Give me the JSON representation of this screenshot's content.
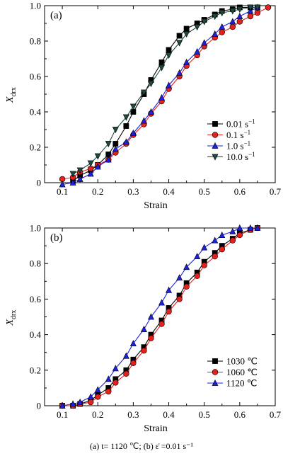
{
  "caption": "(a)  t= 1120 ℃; (b)  ε̇ =0.01 s⁻¹",
  "chart_data": [
    {
      "type": "line",
      "panel_label": "(a)",
      "xlabel": "Strain",
      "ylabel": "X_drx",
      "ylabel_main": "X",
      "ylabel_sub": "drx",
      "xlim": [
        0.05,
        0.7
      ],
      "ylim": [
        0,
        1.0
      ],
      "xticks": [
        "0.1",
        "0.2",
        "0.3",
        "0.4",
        "0.5",
        "0.6",
        "0.7"
      ],
      "yticks": [
        "0",
        "0.2",
        "0.4",
        "0.6",
        "0.8",
        "1.0"
      ],
      "xtick_values": [
        0.1,
        0.2,
        0.3,
        0.4,
        0.5,
        0.6,
        0.7
      ],
      "ytick_values": [
        0,
        0.2,
        0.4,
        0.6,
        0.8,
        1.0
      ],
      "legend_position": "center-right",
      "series": [
        {
          "name": "0.01 s⁻¹",
          "color": "#000000",
          "marker": "square",
          "x": [
            0.13,
            0.15,
            0.18,
            0.2,
            0.23,
            0.25,
            0.28,
            0.3,
            0.33,
            0.35,
            0.38,
            0.4,
            0.43,
            0.45,
            0.48,
            0.5,
            0.53,
            0.55,
            0.58,
            0.6,
            0.63,
            0.65
          ],
          "y": [
            0.01,
            0.04,
            0.07,
            0.1,
            0.16,
            0.22,
            0.32,
            0.4,
            0.5,
            0.58,
            0.68,
            0.75,
            0.83,
            0.87,
            0.9,
            0.92,
            0.95,
            0.97,
            0.98,
            0.99,
            0.99,
            0.99
          ]
        },
        {
          "name": "0.1 s⁻¹",
          "color": "#e8201b",
          "marker": "circle",
          "x": [
            0.1,
            0.13,
            0.15,
            0.18,
            0.2,
            0.23,
            0.25,
            0.28,
            0.3,
            0.33,
            0.35,
            0.38,
            0.4,
            0.43,
            0.45,
            0.48,
            0.5,
            0.53,
            0.55,
            0.58,
            0.6,
            0.63,
            0.65,
            0.68
          ],
          "y": [
            0.02,
            0.03,
            0.06,
            0.08,
            0.1,
            0.13,
            0.17,
            0.22,
            0.27,
            0.33,
            0.39,
            0.46,
            0.53,
            0.6,
            0.66,
            0.72,
            0.77,
            0.82,
            0.85,
            0.88,
            0.91,
            0.94,
            0.96,
            0.99
          ]
        },
        {
          "name": "1.0 s⁻¹",
          "color": "#1e22e0",
          "marker": "triangle-up",
          "x": [
            0.1,
            0.13,
            0.15,
            0.18,
            0.2,
            0.23,
            0.25,
            0.28,
            0.3,
            0.33,
            0.35,
            0.38,
            0.4,
            0.43,
            0.45,
            0.48,
            0.5,
            0.53,
            0.55,
            0.58,
            0.6,
            0.63,
            0.65
          ],
          "y": [
            -0.01,
            0.0,
            0.02,
            0.05,
            0.09,
            0.13,
            0.19,
            0.23,
            0.28,
            0.35,
            0.4,
            0.48,
            0.55,
            0.62,
            0.68,
            0.74,
            0.79,
            0.84,
            0.88,
            0.91,
            0.94,
            0.97,
            0.99
          ]
        },
        {
          "name": "10.0 s⁻¹",
          "color": "#1d4a43",
          "marker": "triangle-down",
          "x": [
            0.13,
            0.15,
            0.18,
            0.2,
            0.23,
            0.25,
            0.28,
            0.3,
            0.33,
            0.35,
            0.38,
            0.4,
            0.43,
            0.45,
            0.48,
            0.5,
            0.53,
            0.55,
            0.58,
            0.6,
            0.63,
            0.65
          ],
          "y": [
            0.05,
            0.07,
            0.11,
            0.15,
            0.22,
            0.3,
            0.37,
            0.43,
            0.51,
            0.56,
            0.65,
            0.72,
            0.79,
            0.84,
            0.88,
            0.91,
            0.94,
            0.96,
            0.97,
            0.98,
            0.99,
            0.99
          ]
        }
      ]
    },
    {
      "type": "line",
      "panel_label": "(b)",
      "xlabel": "Strain",
      "ylabel": "X_drx",
      "ylabel_main": "X",
      "ylabel_sub": "drx",
      "xlim": [
        0.05,
        0.7
      ],
      "ylim": [
        0,
        1.0
      ],
      "xticks": [
        "0.1",
        "0.2",
        "0.3",
        "0.4",
        "0.5",
        "0.6",
        "0.7"
      ],
      "yticks": [
        "0",
        "0.2",
        "0.4",
        "0.6",
        "0.8",
        "1.0"
      ],
      "xtick_values": [
        0.1,
        0.2,
        0.3,
        0.4,
        0.5,
        0.6,
        0.7
      ],
      "ytick_values": [
        0,
        0.2,
        0.4,
        0.6,
        0.8,
        1.0
      ],
      "legend_position": "lower-right",
      "series": [
        {
          "name": "1030 ℃",
          "color": "#000000",
          "marker": "square",
          "x": [
            0.1,
            0.13,
            0.15,
            0.18,
            0.2,
            0.23,
            0.25,
            0.28,
            0.3,
            0.33,
            0.35,
            0.38,
            0.4,
            0.43,
            0.45,
            0.48,
            0.5,
            0.53,
            0.55,
            0.58,
            0.6,
            0.63,
            0.65
          ],
          "y": [
            0.0,
            0.0,
            0.01,
            0.03,
            0.06,
            0.1,
            0.15,
            0.2,
            0.26,
            0.33,
            0.4,
            0.48,
            0.55,
            0.62,
            0.69,
            0.75,
            0.81,
            0.86,
            0.9,
            0.94,
            0.97,
            0.99,
            1.0
          ]
        },
        {
          "name": "1060 ℃",
          "color": "#e8201b",
          "marker": "circle",
          "x": [
            0.1,
            0.13,
            0.15,
            0.18,
            0.2,
            0.23,
            0.25,
            0.28,
            0.3,
            0.33,
            0.35,
            0.38,
            0.4,
            0.43,
            0.45,
            0.48,
            0.5,
            0.53,
            0.55,
            0.58,
            0.6,
            0.63,
            0.65
          ],
          "y": [
            0.0,
            0.0,
            0.01,
            0.02,
            0.05,
            0.08,
            0.13,
            0.18,
            0.24,
            0.31,
            0.38,
            0.46,
            0.53,
            0.6,
            0.67,
            0.73,
            0.79,
            0.84,
            0.88,
            0.93,
            0.96,
            0.99,
            1.0
          ]
        },
        {
          "name": "1120 ℃",
          "color": "#1e22e0",
          "marker": "triangle-up",
          "x": [
            0.1,
            0.13,
            0.15,
            0.18,
            0.2,
            0.23,
            0.25,
            0.28,
            0.3,
            0.33,
            0.35,
            0.38,
            0.4,
            0.43,
            0.45,
            0.48,
            0.5,
            0.53,
            0.55,
            0.58,
            0.6,
            0.63,
            0.65
          ],
          "y": [
            0.0,
            0.01,
            0.02,
            0.05,
            0.09,
            0.15,
            0.21,
            0.28,
            0.35,
            0.43,
            0.5,
            0.58,
            0.65,
            0.72,
            0.78,
            0.84,
            0.89,
            0.93,
            0.96,
            0.98,
            1.0,
            1.0,
            1.0
          ]
        }
      ]
    }
  ]
}
